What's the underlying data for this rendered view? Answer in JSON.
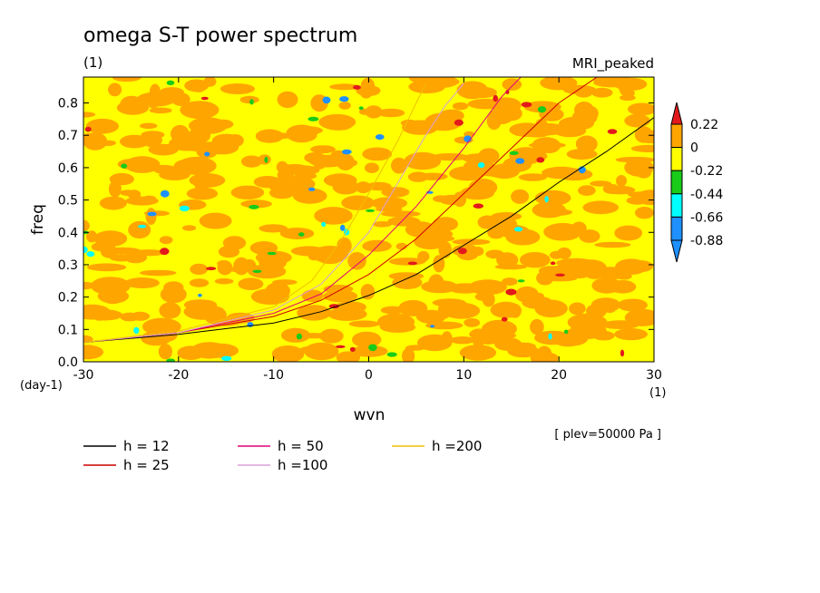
{
  "chart_data": {
    "type": "heatmap",
    "title": "omega S-T power spectrum",
    "subtitle": "(1)",
    "model_label": "MRI_peaked",
    "xlabel": "wvn",
    "ylabel": "freq",
    "x_units": "(1)",
    "y_units": "(day-1)",
    "xlim": [
      -30,
      30
    ],
    "ylim": [
      0,
      0.88
    ],
    "x_ticks": [
      "-30",
      "-20",
      "-10",
      "0",
      "10",
      "20",
      "30"
    ],
    "y_ticks": [
      "0.0",
      "0.1",
      "0.2",
      "0.3",
      "0.4",
      "0.5",
      "0.6",
      "0.7",
      "0.8"
    ],
    "x_tick_values": [
      -30,
      -20,
      -10,
      0,
      10,
      20,
      30
    ],
    "y_tick_values": [
      0,
      0.1,
      0.2,
      0.3,
      0.4,
      0.5,
      0.6,
      0.7,
      0.8
    ],
    "level_note": "[ plev=50000 Pa ]",
    "colorbar": {
      "labels": [
        "0.22",
        "0",
        "-0.22",
        "-0.44",
        "-0.66",
        "-0.88"
      ],
      "levels": [
        0.22,
        0,
        -0.22,
        -0.44,
        -0.66,
        -0.88
      ],
      "colors": [
        "#e31a1c",
        "#ffa500",
        "#ffff00",
        "#19cc19",
        "#00ffff",
        "#1e90ff"
      ]
    },
    "background_levels_note": "field dominated by orange (0 to 0.22) and yellow (-0.22 to 0), with scattered red, green, cyan and blue specks",
    "series": [
      {
        "name": "h = 12",
        "color": "#000000",
        "x": [
          -30,
          -20,
          -10,
          -5,
          0,
          5,
          10,
          15,
          20,
          25,
          30
        ],
        "y": [
          0.06,
          0.085,
          0.12,
          0.155,
          0.205,
          0.27,
          0.36,
          0.45,
          0.555,
          0.65,
          0.755
        ]
      },
      {
        "name": "h = 25",
        "color": "#cc0000",
        "x": [
          -30,
          -20,
          -10,
          -5,
          0,
          5,
          10,
          15,
          20,
          24
        ],
        "y": [
          0.06,
          0.09,
          0.14,
          0.19,
          0.27,
          0.38,
          0.52,
          0.66,
          0.8,
          0.88
        ]
      },
      {
        "name": "h = 50",
        "color": "#e0007a",
        "x": [
          -30,
          -20,
          -10,
          -5,
          0,
          5,
          10,
          14,
          16
        ],
        "y": [
          0.06,
          0.09,
          0.15,
          0.21,
          0.33,
          0.48,
          0.66,
          0.82,
          0.88
        ]
      },
      {
        "name": "h =100",
        "color": "#d9a0d9",
        "x": [
          -30,
          -20,
          -10,
          -5,
          0,
          3,
          6,
          8,
          10
        ],
        "y": [
          0.06,
          0.09,
          0.16,
          0.24,
          0.4,
          0.55,
          0.7,
          0.79,
          0.86
        ]
      },
      {
        "name": "h =200",
        "color": "#f0c000",
        "x": [
          -30,
          -20,
          -10,
          -6,
          -3,
          0,
          3,
          5,
          6
        ],
        "y": [
          0.06,
          0.095,
          0.17,
          0.25,
          0.37,
          0.52,
          0.68,
          0.8,
          0.86
        ]
      }
    ]
  }
}
